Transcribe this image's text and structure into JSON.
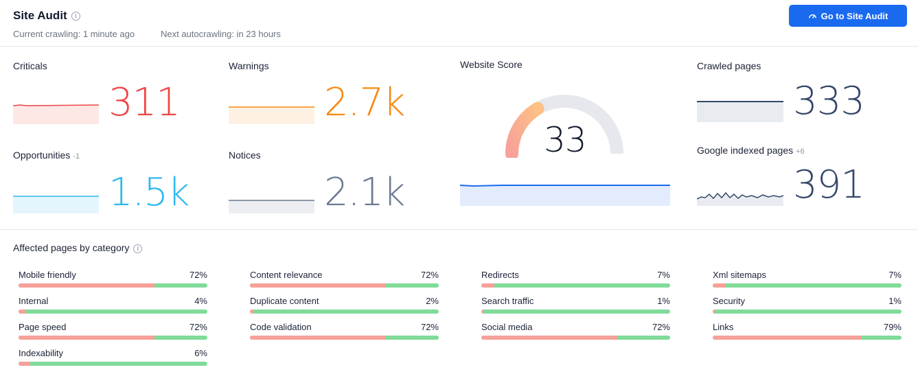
{
  "header": {
    "title": "Site Audit",
    "current_crawling": "Current crawling: 1 minute ago",
    "next_autocrawling": "Next autocrawling: in 23 hours",
    "button_label": "Go to Site Audit"
  },
  "metrics": {
    "criticals": {
      "label": "Criticals",
      "value": "311",
      "color": "#ef4444"
    },
    "warnings": {
      "label": "Warnings",
      "value": "2.7k",
      "color": "#f7880f"
    },
    "opportunities": {
      "label": "Opportunities",
      "delta": "-1",
      "value": "1.5k",
      "color": "#2eb8f0"
    },
    "notices": {
      "label": "Notices",
      "value": "2.1k",
      "color": "#6b7a90"
    },
    "website_score": {
      "label": "Website Score",
      "value": "33",
      "score": 33,
      "max": 100
    },
    "crawled_pages": {
      "label": "Crawled pages",
      "value": "333",
      "color": "#34476a"
    },
    "google_indexed": {
      "label": "Google indexed pages",
      "delta": "+6",
      "value": "391",
      "color": "#34476a"
    }
  },
  "categories": {
    "title": "Affected pages by category",
    "items": [
      {
        "label": "Mobile friendly",
        "value": "72%",
        "pct": 72
      },
      {
        "label": "Internal",
        "value": "4%",
        "pct": 4
      },
      {
        "label": "Page speed",
        "value": "72%",
        "pct": 72
      },
      {
        "label": "Indexability",
        "value": "6%",
        "pct": 6
      },
      {
        "label": "Content relevance",
        "value": "72%",
        "pct": 72
      },
      {
        "label": "Duplicate content",
        "value": "2%",
        "pct": 2
      },
      {
        "label": "Code validation",
        "value": "72%",
        "pct": 72
      },
      {
        "label": "Redirects",
        "value": "7%",
        "pct": 7
      },
      {
        "label": "Search traffic",
        "value": "1%",
        "pct": 1
      },
      {
        "label": "Social media",
        "value": "72%",
        "pct": 72
      },
      {
        "label": "Xml sitemaps",
        "value": "7%",
        "pct": 7
      },
      {
        "label": "Security",
        "value": "1%",
        "pct": 1
      },
      {
        "label": "Links",
        "value": "79%",
        "pct": 79
      }
    ]
  }
}
